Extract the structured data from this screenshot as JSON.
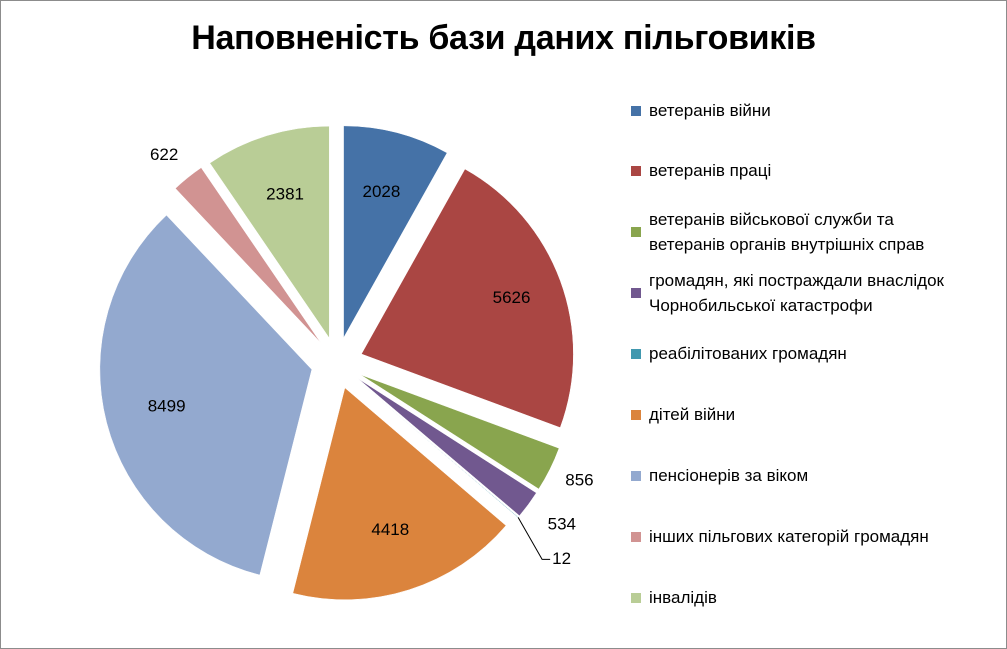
{
  "chart_data": {
    "type": "pie",
    "title": "Наповненість бази даних пільговиків",
    "categories": [
      "ветеранів війни",
      "ветеранів праці",
      "ветеранів військової служби та ветеранів органів внутрішніх справ",
      "громадян, які постраждали внаслідок Чорнобильської катастрофи",
      "реабілітованих громадян",
      "дітей війни",
      "пенсіонерів за віком",
      "інших пільгових категорій громадян",
      "інвалідів"
    ],
    "legend_lines": [
      [
        "ветеранів війни"
      ],
      [
        "ветеранів праці"
      ],
      [
        "ветеранів військової служби та",
        "ветеранів органів внутрішніх справ"
      ],
      [
        "громадян, які постраждали внаслідок",
        "Чорнобильської катастрофи"
      ],
      [
        "реабілітованих громадян"
      ],
      [
        "дітей війни"
      ],
      [
        "пенсіонерів за віком"
      ],
      [
        "інших пільгових категорій громадян"
      ],
      [
        "інвалідів"
      ]
    ],
    "values": [
      2028,
      5626,
      856,
      534,
      12,
      4418,
      8499,
      622,
      2381
    ],
    "data_labels": [
      "2028",
      "5626",
      "856",
      "534",
      "12",
      "4418",
      "8499",
      "622",
      "2381"
    ],
    "colors": [
      "#4572A7",
      "#AA4643",
      "#89A54E",
      "#71588F",
      "#4198AF",
      "#DB843D",
      "#93A9CF",
      "#D19392",
      "#B9CD96"
    ],
    "legend_position": "right",
    "exploded": true
  }
}
